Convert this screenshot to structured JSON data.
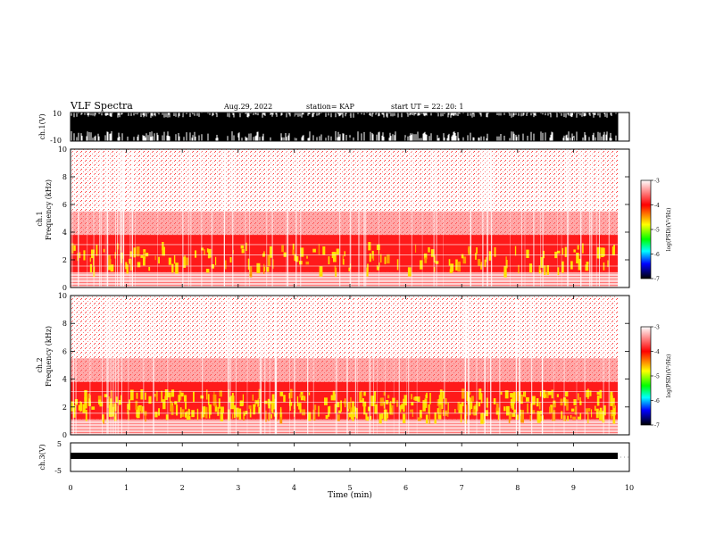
{
  "header": {
    "title": "VLF Spectra",
    "date": "Aug.29, 2022",
    "station": "station= KAP",
    "start_ut": "start  UT  =   22: 20: 1"
  },
  "chart_data": [
    {
      "type": "line",
      "panel": "ch1-waveform",
      "ylabel": "ch.1(V)",
      "ylim": [
        -10,
        10
      ],
      "ytick_labels": [
        "-10",
        "10"
      ],
      "xlim": [
        0,
        10
      ]
    },
    {
      "type": "heatmap",
      "panel": "ch1-spectrogram",
      "ylabel": [
        "ch.1",
        "Frequency  (kHz)"
      ],
      "ylim": [
        0,
        10
      ],
      "ytick_labels": [
        "0",
        "2",
        "4",
        "6",
        "8",
        "10"
      ],
      "xlim": [
        0,
        10
      ],
      "colorbar": {
        "label": "log(PSD)(V²/Hz)",
        "range": [
          -7,
          -3
        ],
        "tick_labels": [
          "-3",
          "-4",
          "-5",
          "-6",
          "-7"
        ],
        "colors": [
          "#ffffff",
          "#ff0000",
          "#ffff00",
          "#00ff00",
          "#00ffff",
          "#0000ff",
          "#000000"
        ]
      }
    },
    {
      "type": "heatmap",
      "panel": "ch2-spectrogram",
      "ylabel": [
        "ch.2",
        "Frequency  (kHz)"
      ],
      "ylim": [
        0,
        10
      ],
      "ytick_labels": [
        "0",
        "2",
        "4",
        "6",
        "8",
        "10"
      ],
      "xlim": [
        0,
        10
      ],
      "colorbar": {
        "label": "log(PSD)(V²/Hz)",
        "range": [
          -7,
          -3
        ],
        "tick_labels": [
          "-3",
          "-4",
          "-5",
          "-6",
          "-7"
        ],
        "colors": [
          "#ffffff",
          "#ff0000",
          "#ffff00",
          "#00ff00",
          "#00ffff",
          "#0000ff",
          "#000000"
        ]
      }
    },
    {
      "type": "line",
      "panel": "ch3-waveform",
      "ylabel": "ch.3(V)",
      "ylim": [
        -5,
        5
      ],
      "ytick_labels": [
        "-5",
        "5"
      ],
      "xlim": [
        0,
        10
      ],
      "xlabel": "Time  (min)",
      "xtick_labels": [
        "0",
        "1",
        "2",
        "3",
        "4",
        "5",
        "6",
        "7",
        "8",
        "9",
        "10"
      ]
    }
  ]
}
